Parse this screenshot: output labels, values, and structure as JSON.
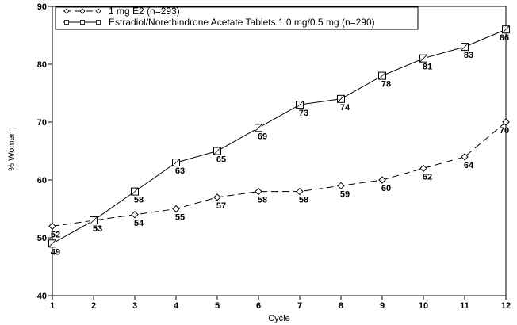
{
  "chart_data": {
    "type": "line",
    "title": "",
    "xlabel": "Cycle",
    "ylabel": "% Women",
    "x": [
      1,
      2,
      3,
      4,
      5,
      6,
      7,
      8,
      9,
      10,
      11,
      12
    ],
    "xlim": [
      1,
      12
    ],
    "ylim": [
      40,
      90
    ],
    "yticks": [
      40,
      50,
      60,
      70,
      80,
      90
    ],
    "grid": false,
    "legend_position": "top-left",
    "series": [
      {
        "name": "1 mg E2 (n=293)",
        "marker": "diamond",
        "line_style": "dashed",
        "values": [
          52,
          53,
          54,
          55,
          57,
          58,
          58,
          59,
          60,
          62,
          64,
          70
        ],
        "labels": [
          "52",
          "53",
          "54",
          "55",
          "57",
          "58",
          "58",
          "59",
          "60",
          "62",
          "64",
          "70"
        ]
      },
      {
        "name": "Estradiol/Norethindrone Acetate Tablets 1.0 mg/0.5 mg (n=290)",
        "marker": "square",
        "line_style": "solid",
        "values": [
          49,
          53,
          58,
          63,
          65,
          69,
          73,
          74,
          78,
          81,
          83,
          86
        ],
        "labels": [
          "49",
          "53",
          "58",
          "63",
          "65",
          "69",
          "73",
          "74",
          "78",
          "81",
          "83",
          "86"
        ]
      }
    ]
  }
}
